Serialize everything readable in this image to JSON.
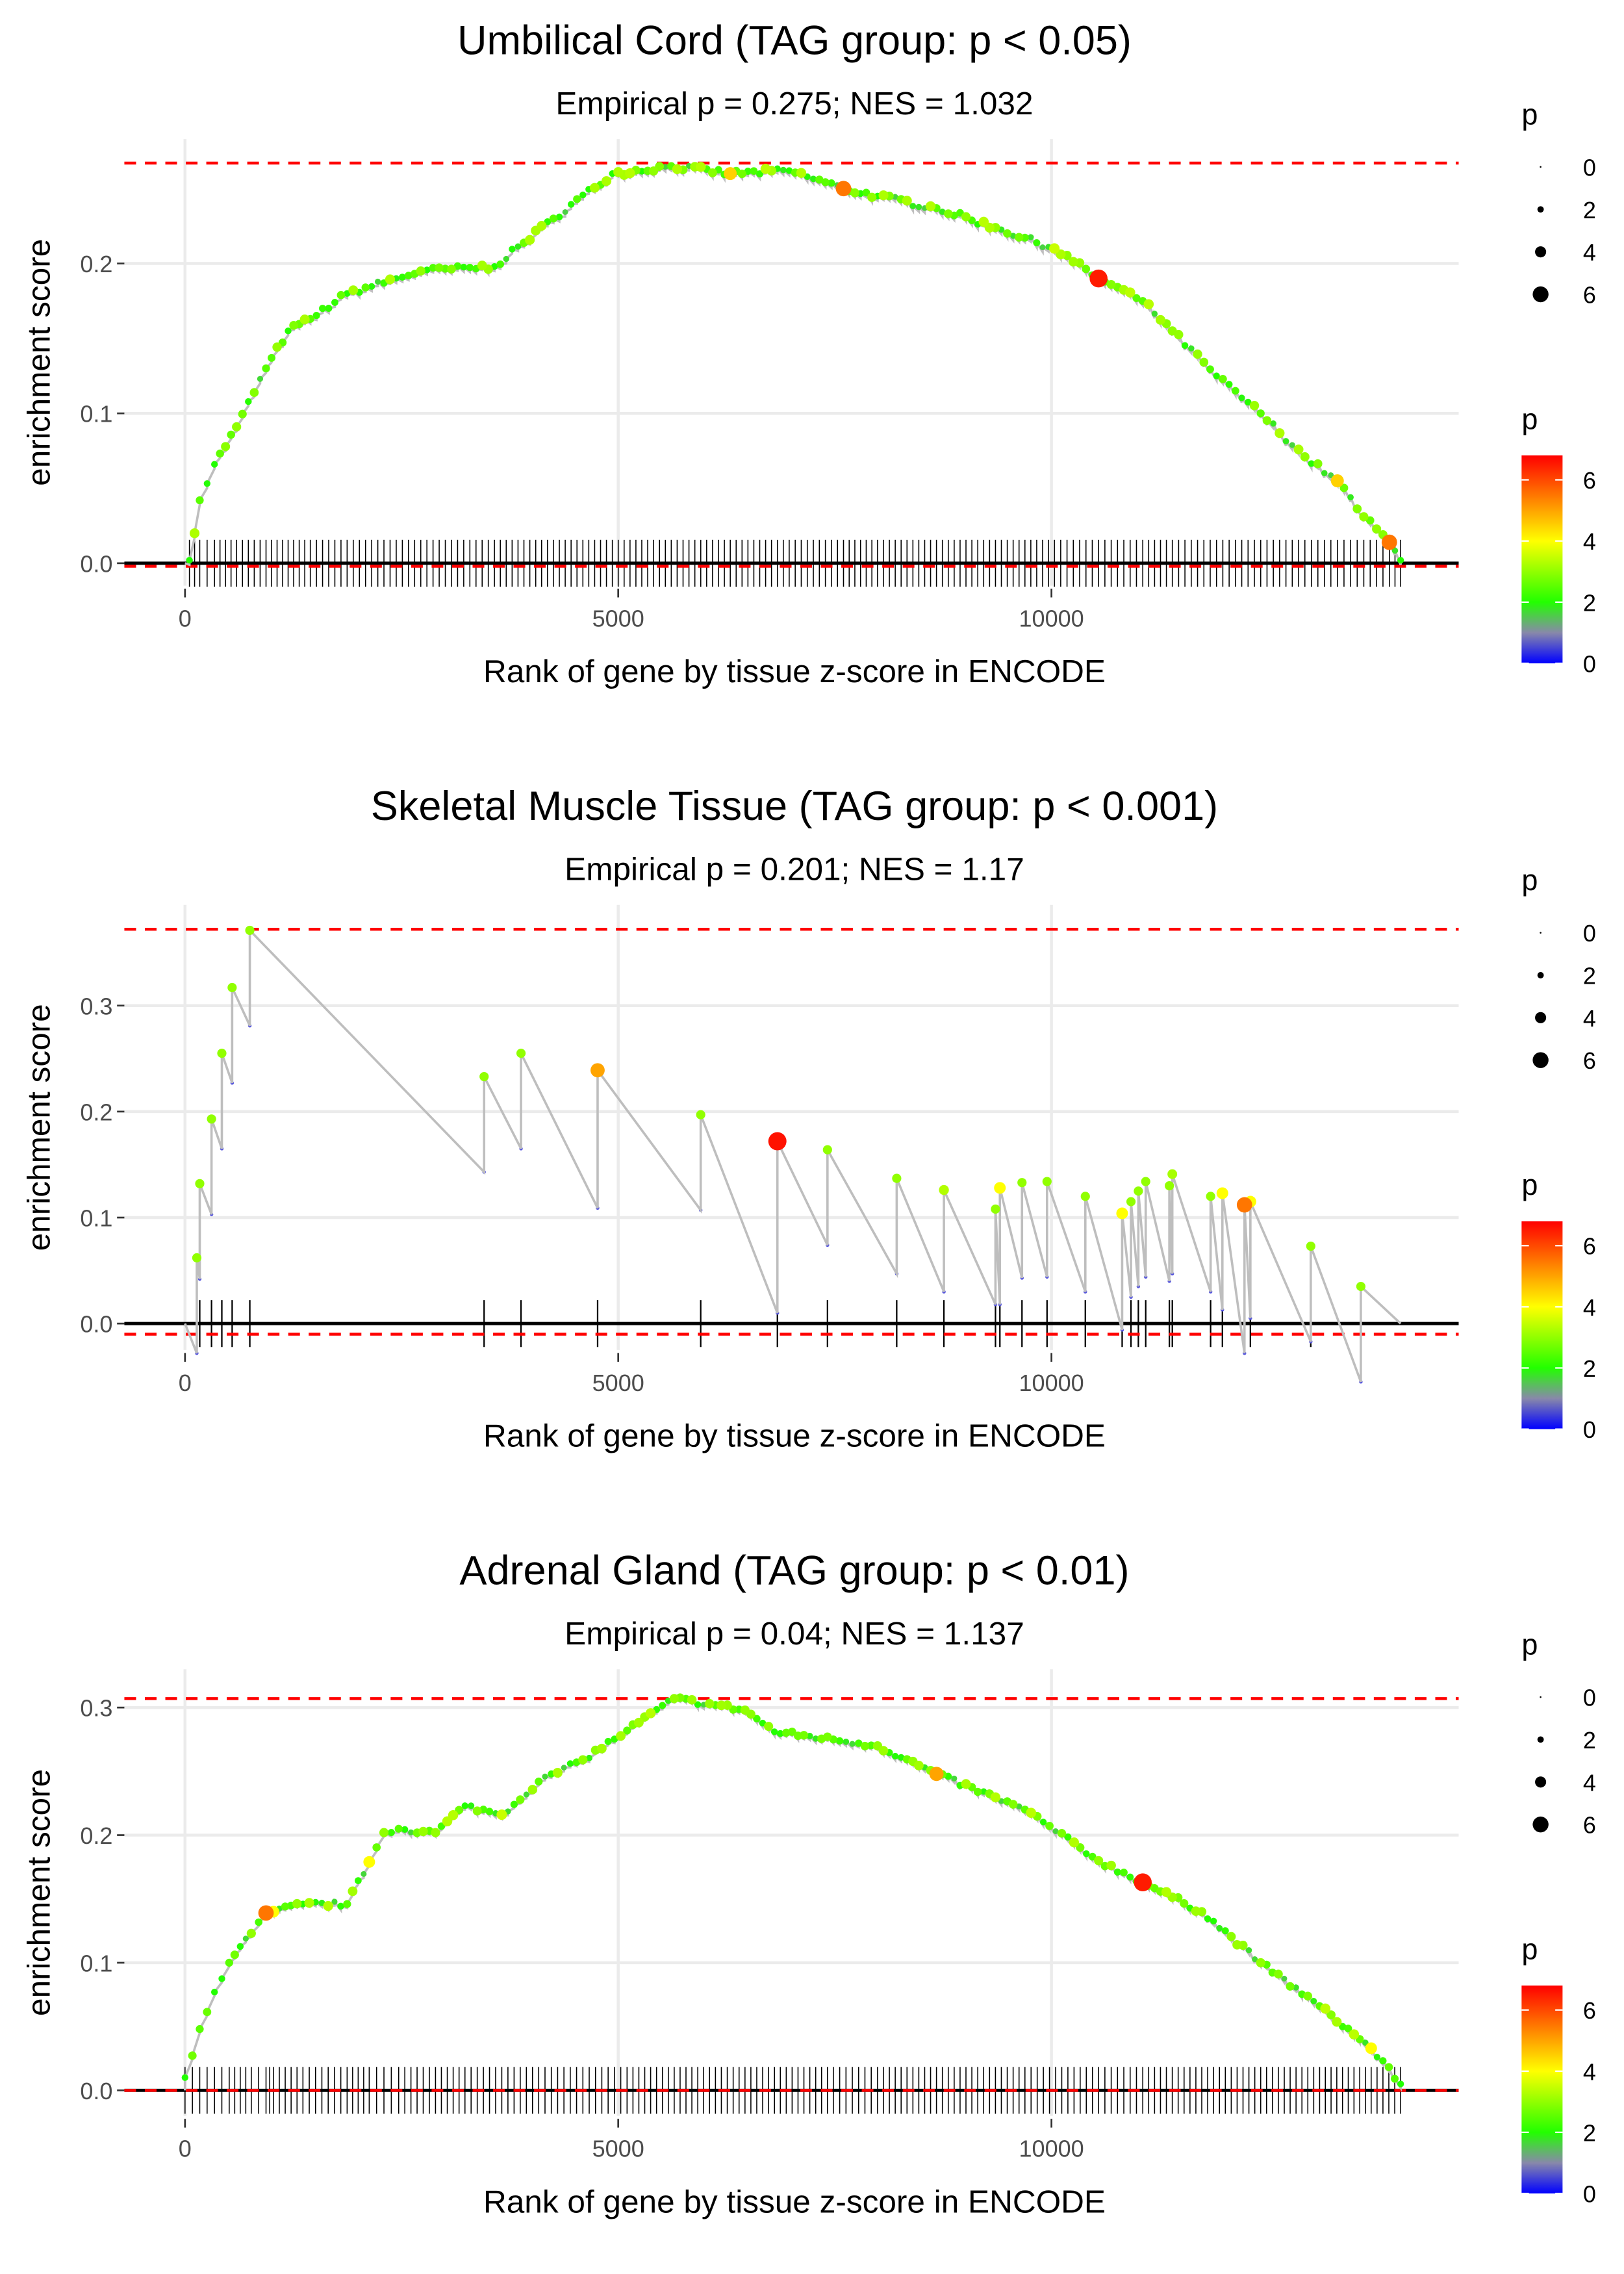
{
  "colors": {
    "dashed": "#ff0000",
    "line": "#bebebe",
    "grid": "#ebebeb",
    "scale": [
      "#0000ff",
      "#8888aa",
      "#22ff00",
      "#ffff00",
      "#ff0000"
    ]
  },
  "legend": {
    "size_title": "p",
    "size_labels": [
      "0",
      "2",
      "4",
      "6"
    ],
    "size_values": [
      0,
      2,
      4,
      6
    ],
    "color_title": "p",
    "color_labels": [
      "6",
      "4",
      "2",
      "0"
    ],
    "color_values": [
      6,
      4,
      2,
      0
    ],
    "color_max": 6.8
  },
  "chart_data": [
    {
      "type": "line",
      "title": "Umbilical Cord (TAG group: p < 0.05)",
      "subtitle": "Empirical p = 0.275; NES = 1.032",
      "xlabel": "Rank of gene by tissue z-score in ENCODE",
      "ylabel": "enrichment score",
      "xlim": [
        -700,
        14700
      ],
      "ylim": [
        -0.015,
        0.283
      ],
      "xticks": [
        0,
        5000,
        10000
      ],
      "xtick_labels": [
        "0",
        "5000",
        "10000"
      ],
      "yticks": [
        0,
        0.1,
        0.2
      ],
      "ytick_labels": [
        "0.0",
        "0.1",
        "0.2"
      ],
      "thresholds": [
        0.267,
        -0.002
      ],
      "dense": true,
      "end_rank": 14030,
      "points": [
        [
          51,
          0.002,
          2
        ],
        [
          170,
          0.042,
          2.5
        ],
        [
          340,
          0.066,
          2
        ],
        [
          595,
          0.091,
          3
        ],
        [
          935,
          0.13,
          2.5
        ],
        [
          1190,
          0.155,
          2
        ],
        [
          1446,
          0.163,
          2.5
        ],
        [
          1871,
          0.18,
          2
        ],
        [
          2721,
          0.195,
          3
        ],
        [
          3571,
          0.198,
          2
        ],
        [
          4252,
          0.23,
          2.5
        ],
        [
          4932,
          0.26,
          2
        ],
        [
          5612,
          0.265,
          2.5
        ],
        [
          6293,
          0.26,
          4.5
        ],
        [
          6973,
          0.262,
          2
        ],
        [
          7600,
          0.25,
          5.5
        ],
        [
          7993,
          0.245,
          2
        ],
        [
          8673,
          0.237,
          2.5
        ],
        [
          9354,
          0.224,
          3
        ],
        [
          10034,
          0.21,
          3.5
        ],
        [
          10544,
          0.19,
          6.5
        ],
        [
          11054,
          0.175,
          2.5
        ],
        [
          11395,
          0.155,
          3
        ],
        [
          11905,
          0.125,
          2
        ],
        [
          12415,
          0.1,
          2.5
        ],
        [
          12925,
          0.071,
          3
        ],
        [
          13300,
          0.055,
          4.5
        ],
        [
          13605,
          0.031,
          3
        ],
        [
          13900,
          0.014,
          5.5
        ],
        [
          14030,
          0.002,
          2
        ]
      ]
    },
    {
      "type": "line",
      "title": "Skeletal Muscle Tissue (TAG group: p < 0.001)",
      "subtitle": "Empirical p = 0.201; NES = 1.17",
      "xlabel": "Rank of gene by tissue z-score in ENCODE",
      "ylabel": "enrichment score",
      "xlim": [
        -700,
        14700
      ],
      "ylim": [
        -0.025,
        0.395
      ],
      "xticks": [
        0,
        5000,
        10000
      ],
      "xtick_labels": [
        "0",
        "5000",
        "10000"
      ],
      "yticks": [
        0,
        0.1,
        0.2,
        0.3
      ],
      "ytick_labels": [
        "0.0",
        "0.1",
        "0.2",
        "0.3"
      ],
      "thresholds": [
        0.372,
        -0.01
      ],
      "dense": false,
      "end_rank": 14030,
      "points": [
        [
          136,
          0.062,
          3
        ],
        [
          170,
          0.132,
          3
        ],
        [
          306,
          0.193,
          3
        ],
        [
          425,
          0.255,
          3
        ],
        [
          544,
          0.317,
          3
        ],
        [
          748,
          0.371,
          3
        ],
        [
          3452,
          0.233,
          3
        ],
        [
          3878,
          0.255,
          3
        ],
        [
          4762,
          0.239,
          5
        ],
        [
          5952,
          0.197,
          3
        ],
        [
          6837,
          0.172,
          6.6
        ],
        [
          7415,
          0.164,
          3
        ],
        [
          8214,
          0.137,
          3
        ],
        [
          8759,
          0.126,
          3.3
        ],
        [
          9354,
          0.108,
          3
        ],
        [
          9405,
          0.128,
          4
        ],
        [
          9660,
          0.133,
          3
        ],
        [
          9949,
          0.134,
          3
        ],
        [
          10391,
          0.12,
          3
        ],
        [
          10816,
          0.104,
          4
        ],
        [
          10918,
          0.115,
          3
        ],
        [
          11003,
          0.125,
          3
        ],
        [
          11088,
          0.134,
          3
        ],
        [
          11361,
          0.13,
          3
        ],
        [
          11395,
          0.141,
          3.2
        ],
        [
          11837,
          0.12,
          3
        ],
        [
          11973,
          0.123,
          4
        ],
        [
          12228,
          0.112,
          5.5
        ],
        [
          12296,
          0.115,
          4
        ],
        [
          12993,
          0.073,
          3
        ],
        [
          13571,
          0.035,
          3
        ]
      ]
    },
    {
      "type": "line",
      "title": "Adrenal Gland (TAG group: p < 0.01)",
      "subtitle": "Empirical p = 0.04; NES = 1.137",
      "xlabel": "Rank of gene by tissue z-score in ENCODE",
      "ylabel": "enrichment score",
      "xlim": [
        -700,
        14700
      ],
      "ylim": [
        -0.02,
        0.33
      ],
      "xticks": [
        0,
        5000,
        10000
      ],
      "xtick_labels": [
        "0",
        "5000",
        "10000"
      ],
      "yticks": [
        0,
        0.1,
        0.2,
        0.3
      ],
      "ytick_labels": [
        "0.0",
        "0.1",
        "0.2",
        "0.3"
      ],
      "thresholds": [
        0.307,
        0.0
      ],
      "dense": true,
      "end_rank": 14030,
      "points": [
        [
          0,
          0.01,
          2
        ],
        [
          170,
          0.048,
          2.5
        ],
        [
          340,
          0.077,
          2
        ],
        [
          510,
          0.1,
          2.5
        ],
        [
          765,
          0.123,
          3
        ],
        [
          935,
          0.139,
          5.5
        ],
        [
          1020,
          0.14,
          4
        ],
        [
          1361,
          0.146,
          2
        ],
        [
          1871,
          0.146,
          2.5
        ],
        [
          2126,
          0.179,
          4
        ],
        [
          2296,
          0.202,
          3
        ],
        [
          2466,
          0.205,
          2.5
        ],
        [
          2891,
          0.202,
          3
        ],
        [
          3231,
          0.223,
          2
        ],
        [
          3656,
          0.216,
          3.5
        ],
        [
          4082,
          0.242,
          2.5
        ],
        [
          4592,
          0.259,
          3
        ],
        [
          5102,
          0.282,
          2.5
        ],
        [
          5646,
          0.307,
          3
        ],
        [
          6122,
          0.302,
          2.5
        ],
        [
          6463,
          0.298,
          3
        ],
        [
          6803,
          0.281,
          2
        ],
        [
          7483,
          0.275,
          2.5
        ],
        [
          7993,
          0.27,
          3
        ],
        [
          8673,
          0.248,
          5
        ],
        [
          9694,
          0.22,
          2.5
        ],
        [
          10544,
          0.18,
          3
        ],
        [
          11054,
          0.163,
          6.5
        ],
        [
          11735,
          0.14,
          3
        ],
        [
          12415,
          0.1,
          3
        ],
        [
          13095,
          0.066,
          2.5
        ],
        [
          13690,
          0.033,
          4
        ],
        [
          14030,
          0.005,
          2
        ]
      ]
    }
  ]
}
